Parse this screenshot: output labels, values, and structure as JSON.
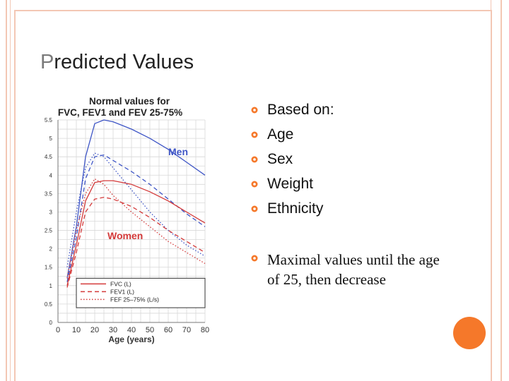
{
  "slide": {
    "title_first": "P",
    "title_rest": "redicted Values"
  },
  "bullets": {
    "items": [
      {
        "text": "Based on:"
      },
      {
        "text": " Age"
      },
      {
        "text": " Sex"
      },
      {
        "text": "Weight"
      },
      {
        "text": "Ethnicity"
      }
    ],
    "conclusion": "Maximal values until the age of 25, then decrease"
  },
  "colors": {
    "frame": "#f3c7b4",
    "bullet": "#f5782a",
    "men": "#3f56c6",
    "women": "#d43a3a"
  },
  "chart_data": {
    "type": "line",
    "title": "Normal values for FVC, FEV1 and FEV 25-75%",
    "xlabel": "Age (years)",
    "ylabel": "",
    "xlim": [
      0,
      80
    ],
    "ylim": [
      0,
      5.5
    ],
    "xticks": [
      "0",
      "10",
      "20",
      "30",
      "40",
      "50",
      "60",
      "70",
      "80"
    ],
    "yticks": [
      "0",
      "0.5",
      "1",
      "1.5",
      "2",
      "2.5",
      "3",
      "3.5",
      "4",
      "4.5",
      "5",
      "5.5"
    ],
    "annotations": [
      {
        "text": "Men",
        "group": "men"
      },
      {
        "text": "Women",
        "group": "women"
      }
    ],
    "legend": [
      {
        "label": "FVC (L)",
        "style": "solid"
      },
      {
        "label": "FEV1 (L)",
        "style": "dashed"
      },
      {
        "label": "FEF 25–75% (L/s)",
        "style": "dotted"
      }
    ],
    "series": [
      {
        "name": "Men FVC",
        "group": "men",
        "style": "solid",
        "x": [
          5,
          10,
          15,
          20,
          25,
          30,
          40,
          50,
          60,
          70,
          80
        ],
        "y": [
          1.2,
          2.6,
          4.5,
          5.4,
          5.5,
          5.45,
          5.25,
          5.0,
          4.7,
          4.35,
          4.0
        ]
      },
      {
        "name": "Men FEV1",
        "group": "men",
        "style": "dashed",
        "x": [
          5,
          10,
          15,
          20,
          25,
          30,
          40,
          50,
          60,
          70,
          80
        ],
        "y": [
          1.1,
          2.3,
          3.9,
          4.5,
          4.55,
          4.4,
          4.1,
          3.75,
          3.35,
          2.95,
          2.6
        ]
      },
      {
        "name": "Men FEF 25-75%",
        "group": "men",
        "style": "dotted",
        "x": [
          5,
          10,
          15,
          20,
          25,
          30,
          40,
          50,
          60,
          70,
          80
        ],
        "y": [
          1.5,
          3.0,
          4.2,
          4.6,
          4.5,
          4.2,
          3.6,
          3.0,
          2.5,
          2.1,
          1.8
        ]
      },
      {
        "name": "Women FVC",
        "group": "women",
        "style": "solid",
        "x": [
          5,
          10,
          15,
          20,
          25,
          30,
          40,
          50,
          60,
          70,
          80
        ],
        "y": [
          1.0,
          2.1,
          3.3,
          3.8,
          3.85,
          3.85,
          3.75,
          3.55,
          3.3,
          3.0,
          2.7
        ]
      },
      {
        "name": "Women FEV1",
        "group": "women",
        "style": "dashed",
        "x": [
          5,
          10,
          15,
          20,
          25,
          30,
          40,
          50,
          60,
          70,
          80
        ],
        "y": [
          0.95,
          1.9,
          3.0,
          3.35,
          3.4,
          3.35,
          3.15,
          2.85,
          2.5,
          2.2,
          1.9
        ]
      },
      {
        "name": "Women FEF 25-75%",
        "group": "women",
        "style": "dotted",
        "x": [
          5,
          10,
          15,
          20,
          25,
          30,
          40,
          50,
          60,
          70,
          80
        ],
        "y": [
          1.2,
          2.5,
          3.5,
          3.9,
          3.75,
          3.45,
          3.0,
          2.6,
          2.2,
          1.9,
          1.6
        ]
      }
    ]
  }
}
